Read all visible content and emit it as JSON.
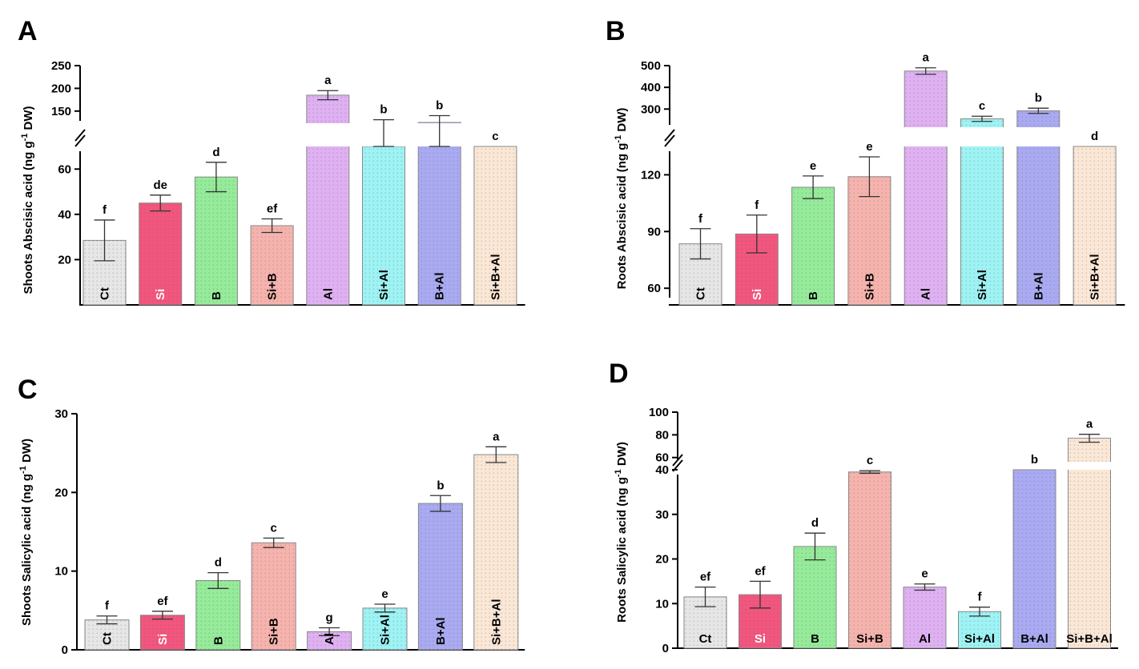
{
  "colors": {
    "Ct": "#e6e6e6",
    "Si": "#f2567e",
    "B": "#95eb9a",
    "Si+B": "#f6b3ad",
    "Al": "#dfb1f2",
    "Si+Al": "#9ef3f4",
    "B+Al": "#a9aaf2",
    "Si+B+Al": "#fbe7d6"
  },
  "chart_data": [
    {
      "panel": "A",
      "type": "bar",
      "ylabel": "Shoots Abscisic acid  (ng g-1 DW)",
      "ylabel_unit_sup": "-1",
      "categories": [
        "Ct",
        "Si",
        "B",
        "Si+B",
        "Al",
        "Si+Al",
        "B+Al",
        "Si+B+Al"
      ],
      "cat_label_rotated": true,
      "values": [
        28.5,
        45,
        56.5,
        35,
        185,
        122,
        125,
        70
      ],
      "errors": [
        9,
        3.5,
        6.5,
        3,
        10,
        9,
        15,
        0
      ],
      "sig": [
        "f",
        "de",
        "d",
        "ef",
        "a",
        "b",
        "b",
        "c"
      ],
      "broken_axis": {
        "lower": [
          0,
          70
        ],
        "upper": [
          125,
          250
        ],
        "lower_ticks": [
          "20",
          "40",
          "60"
        ],
        "upper_ticks": [
          "150",
          "200",
          "250"
        ]
      }
    },
    {
      "panel": "B",
      "type": "bar",
      "ylabel": "Roots Abscisic acid  (ng g-1 DW)",
      "ylabel_unit_sup": "-1",
      "categories": [
        "Ct",
        "Si",
        "B",
        "Si+B",
        "Al",
        "Si+Al",
        "B+Al",
        "Si+B+Al"
      ],
      "cat_label_rotated": true,
      "values": [
        83.5,
        88.7,
        113.4,
        119,
        475,
        255,
        292,
        135
      ],
      "errors": [
        8,
        10,
        6,
        10.5,
        15,
        12,
        12,
        0
      ],
      "sig": [
        "f",
        "f",
        "e",
        "e",
        "a",
        "c",
        "b",
        "d"
      ],
      "broken_axis": {
        "lower": [
          55,
          135
        ],
        "upper": [
          220,
          500
        ],
        "lower_ticks": [
          "60",
          "90",
          "120"
        ],
        "upper_ticks": [
          "300",
          "400",
          "500"
        ]
      }
    },
    {
      "panel": "C",
      "type": "bar",
      "ylabel": "Shoots Salicylic acid (ng g-1 DW)",
      "ylabel_unit_sup": "-1",
      "categories": [
        "Ct",
        "Si",
        "B",
        "Si+B",
        "Al",
        "Si+Al",
        "B+Al",
        "Si+B+Al"
      ],
      "cat_label_rotated": true,
      "values": [
        3.8,
        4.4,
        8.8,
        13.6,
        2.3,
        5.3,
        18.6,
        24.8
      ],
      "errors": [
        0.5,
        0.5,
        1.0,
        0.6,
        0.5,
        0.5,
        1.0,
        1.0
      ],
      "sig": [
        "f",
        "ef",
        "d",
        "c",
        "g",
        "e",
        "b",
        "a"
      ],
      "ylim": [
        0,
        30
      ],
      "ticks": [
        "0",
        "10",
        "20",
        "30"
      ]
    },
    {
      "panel": "D",
      "type": "bar",
      "ylabel": "Roots Salicylic acid (ng g-1 DW)",
      "ylabel_unit_sup": "-1",
      "categories": [
        "Ct",
        "Si",
        "B",
        "Si+B",
        "Al",
        "Si+Al",
        "B+Al",
        "Si+B+Al"
      ],
      "cat_label_rotated": false,
      "values": [
        11.5,
        12,
        22.8,
        39.5,
        13.7,
        8.2,
        40,
        77
      ],
      "errors": [
        2.2,
        3,
        3,
        0.3,
        0.7,
        1,
        0,
        3.5
      ],
      "sig": [
        "ef",
        "ef",
        "d",
        "c",
        "e",
        "f",
        "b",
        "a"
      ],
      "broken_axis": {
        "lower": [
          0,
          40
        ],
        "upper": [
          57,
          100
        ],
        "lower_ticks": [
          "0",
          "10",
          "20",
          "30",
          "40"
        ],
        "upper_ticks": [
          "60",
          "80",
          "100"
        ]
      }
    }
  ]
}
